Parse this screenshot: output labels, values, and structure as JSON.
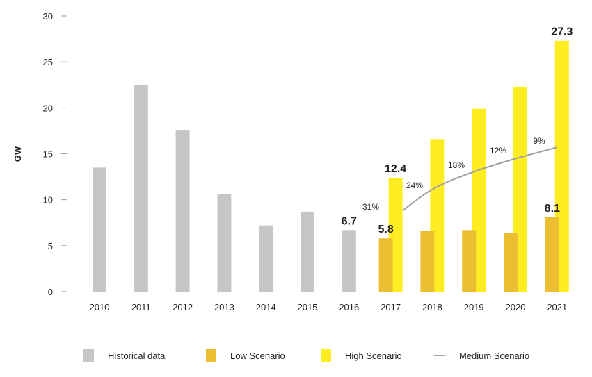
{
  "chart_data": {
    "type": "bar",
    "title": "",
    "xlabel": "",
    "ylabel": "GW",
    "ylim": [
      0,
      30
    ],
    "yticks": [
      0,
      5,
      10,
      15,
      20,
      25,
      30
    ],
    "grid": false,
    "legend_position": "bottom",
    "categories": [
      "2010",
      "2011",
      "2012",
      "2013",
      "2014",
      "2015",
      "2016",
      "2017",
      "2018",
      "2019",
      "2020",
      "2021"
    ],
    "series": [
      {
        "name": "Historical data",
        "kind": "bar",
        "color": "#c5c6c8",
        "values": [
          13.5,
          22.5,
          17.6,
          10.6,
          7.2,
          8.7,
          6.7,
          null,
          null,
          null,
          null,
          null
        ]
      },
      {
        "name": "Low Scenario",
        "kind": "bar",
        "color": "#ecbf32",
        "values": [
          null,
          null,
          null,
          null,
          null,
          null,
          null,
          5.8,
          6.6,
          6.7,
          6.4,
          8.1
        ]
      },
      {
        "name": "High Scenario",
        "kind": "bar",
        "color": "#ffed24",
        "values": [
          null,
          null,
          null,
          null,
          null,
          null,
          null,
          12.4,
          16.6,
          19.9,
          22.3,
          27.3
        ]
      },
      {
        "name": "Medium Scenario",
        "kind": "line",
        "color": "#a0a0a0",
        "values": [
          null,
          null,
          null,
          null,
          null,
          null,
          null,
          8.8,
          11.3,
          13.1,
          14.5,
          15.7
        ]
      }
    ],
    "data_labels": [
      {
        "category": "2016",
        "series": "Historical data",
        "text": "6.7"
      },
      {
        "category": "2017",
        "series": "Low Scenario",
        "text": "5.8"
      },
      {
        "category": "2017",
        "series": "High Scenario",
        "text": "12.4"
      },
      {
        "category": "2021",
        "series": "Low Scenario",
        "text": "8.1"
      },
      {
        "category": "2021",
        "series": "High Scenario",
        "text": "27.3"
      }
    ],
    "growth_annotations": [
      {
        "category": "2017",
        "text": "31%"
      },
      {
        "category": "2018",
        "text": "24%"
      },
      {
        "category": "2019",
        "text": "18%"
      },
      {
        "category": "2020",
        "text": "12%"
      },
      {
        "category": "2021",
        "text": "9%"
      }
    ]
  },
  "legend": [
    {
      "label": "Historical data",
      "color": "#c5c6c8",
      "shape": "swatch"
    },
    {
      "label": "Low Scenario",
      "color": "#ecbf32",
      "shape": "swatch"
    },
    {
      "label": "High Scenario",
      "color": "#ffed24",
      "shape": "swatch"
    },
    {
      "label": "Medium Scenario",
      "color": "#a0a0a0",
      "shape": "line"
    }
  ]
}
